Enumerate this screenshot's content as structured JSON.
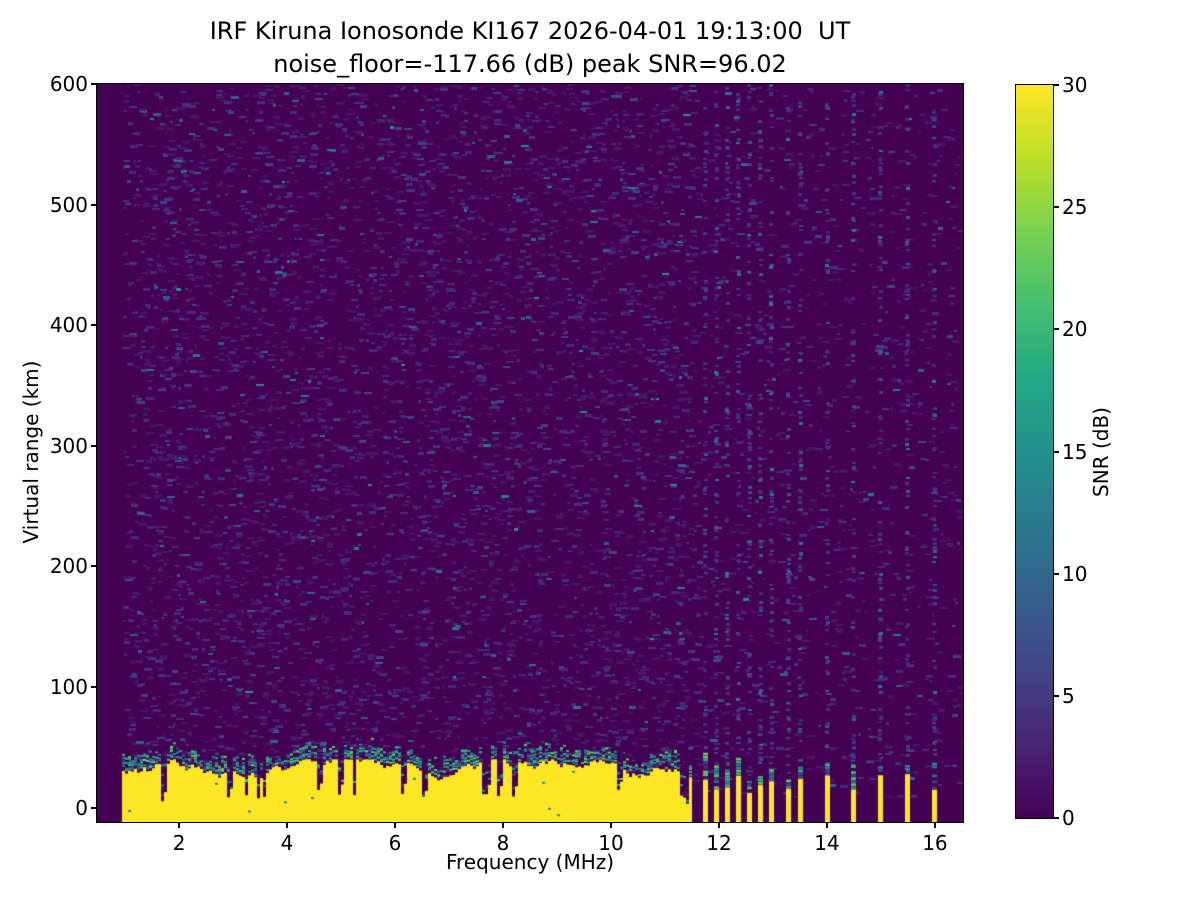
{
  "chart_data": {
    "type": "heatmap",
    "title": "IRF Kiruna Ionosonde KI167 2026-04-01 19:13:00  UT",
    "subtitle": "noise_floor=-117.66 (dB) peak SNR=96.02",
    "station": "KI167",
    "timestamp_ut": "2026-04-01 19:13:00",
    "noise_floor_db": -117.66,
    "peak_snr_db": 96.02,
    "xlabel": "Frequency (MHz)",
    "ylabel": "Virtual range (km)",
    "colorbar_label": "SNR (dB)",
    "x_ticks": [
      2,
      4,
      6,
      8,
      10,
      12,
      14,
      16
    ],
    "y_ticks": [
      0,
      100,
      200,
      300,
      400,
      500,
      600
    ],
    "colorbar_ticks": [
      0,
      5,
      10,
      15,
      20,
      25,
      30
    ],
    "xlim": [
      0.48,
      16.52
    ],
    "ylim": [
      -12,
      600
    ],
    "clim": [
      0,
      30
    ],
    "colormap": "viridis",
    "grid": false,
    "viridis_stops": [
      [
        0,
        "#440154"
      ],
      [
        10,
        "#482475"
      ],
      [
        20,
        "#414487"
      ],
      [
        30,
        "#355f8d"
      ],
      [
        40,
        "#2a788e"
      ],
      [
        50,
        "#21918c"
      ],
      [
        60,
        "#22a884"
      ],
      [
        70,
        "#44bf70"
      ],
      [
        80,
        "#7ad151"
      ],
      [
        90,
        "#bddf26"
      ],
      [
        100,
        "#fde725"
      ]
    ],
    "colors": {
      "background": "#440154",
      "saturated": "#fde725",
      "spine": "#000000",
      "text": "#000000"
    },
    "features": {
      "seed": 1913,
      "data_start_mhz": 0.95,
      "noise_speckle_count": 6000,
      "ground_clutter": {
        "f_end_mhz": 11.56,
        "top_km_mean": 29,
        "top_km_min": 20,
        "top_km_max": 40,
        "transition_km": 12,
        "notch_count": 18
      },
      "tx_stripes_mhz": [
        11.74,
        11.94,
        12.15,
        12.35,
        12.56,
        12.76,
        12.96,
        13.28,
        13.5,
        14.0,
        14.48,
        14.98,
        15.48,
        15.98
      ]
    },
    "render": {
      "palettes": {
        "speckle": [
          [
            "#481769",
            0.5
          ],
          [
            "#472a7a",
            0.25
          ],
          [
            "#46327e",
            0.12
          ],
          [
            "#414487",
            0.08
          ],
          [
            "#355f8d",
            0.035
          ],
          [
            "#2a788e",
            0.01
          ],
          [
            "#21918c",
            0.005
          ]
        ],
        "column": [
          [
            "#472a7a",
            0.3
          ],
          [
            "#46327e",
            0.3
          ],
          [
            "#414487",
            0.22
          ],
          [
            "#355f8d",
            0.12
          ],
          [
            "#2a788e",
            0.06
          ]
        ],
        "transition": [
          [
            "#5ec962",
            0.18
          ],
          [
            "#35b779",
            0.2
          ],
          [
            "#21918c",
            0.22
          ],
          [
            "#1f9e89",
            0.1
          ],
          [
            "#2a788e",
            0.12
          ],
          [
            "#31688e",
            0.08
          ],
          [
            "#443983",
            0.1
          ]
        ],
        "cap": [
          [
            "#5ec962",
            0.2
          ],
          [
            "#35b779",
            0.25
          ],
          [
            "#21918c",
            0.2
          ],
          [
            "#2a788e",
            0.15
          ],
          [
            "#414487",
            0.2
          ]
        ],
        "faint": [
          [
            "#46327e",
            0.4
          ],
          [
            "#414487",
            0.4
          ],
          [
            "#355f8d",
            0.2
          ]
        ]
      }
    }
  }
}
